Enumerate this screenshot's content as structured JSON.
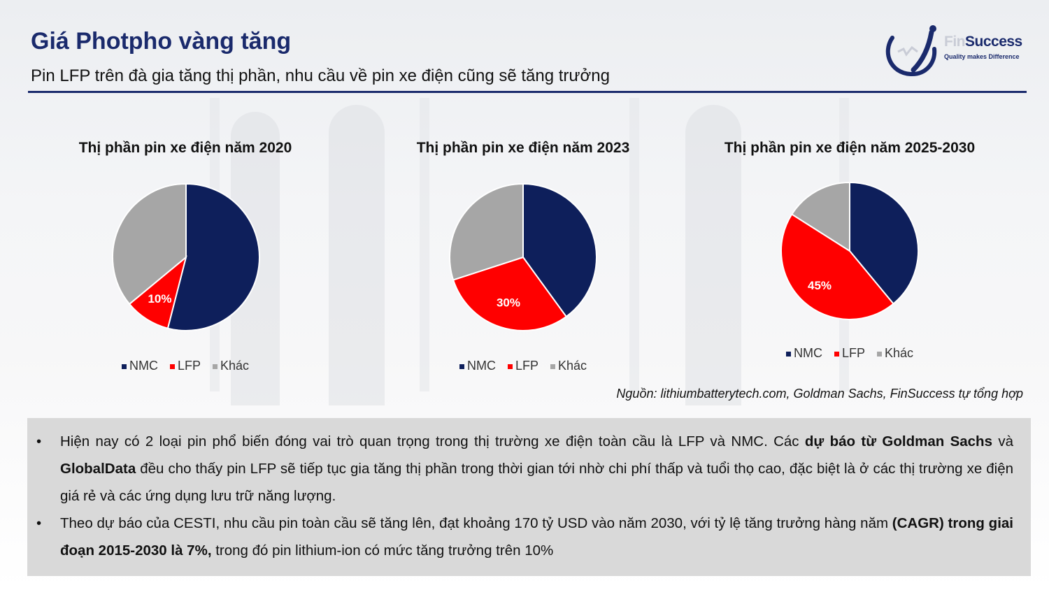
{
  "header": {
    "title": "Giá Photpho vàng tăng",
    "subtitle": "Pin LFP trên đà gia tăng thị phần, nhu cầu về pin xe điện cũng sẽ tăng trưởng"
  },
  "logo": {
    "name_prefix": "Fin",
    "name_suffix": "Success",
    "tagline": "Quality makes Difference"
  },
  "colors": {
    "NMC": "#0e1f5b",
    "LFP": "#ff0000",
    "Khác": "#a6a6a6",
    "brand": "#1a2a6c"
  },
  "chart_data": [
    {
      "type": "pie",
      "title": "Thị phần pin xe điện năm 2020",
      "categories": [
        "NMC",
        "LFP",
        "Khác"
      ],
      "values": [
        54,
        10,
        36
      ],
      "data_labels": [
        "",
        "10%",
        ""
      ],
      "legend": "bottom"
    },
    {
      "type": "pie",
      "title": "Thị phần pin xe điện năm 2023",
      "categories": [
        "NMC",
        "LFP",
        "Khác"
      ],
      "values": [
        40,
        30,
        30
      ],
      "data_labels": [
        "",
        "30%",
        ""
      ],
      "legend": "bottom"
    },
    {
      "type": "pie",
      "title": "Thị phần pin xe điện năm 2025-2030",
      "categories": [
        "NMC",
        "LFP",
        "Khác"
      ],
      "values": [
        39,
        45,
        16
      ],
      "data_labels": [
        "",
        "45%",
        ""
      ],
      "legend": "bottom"
    }
  ],
  "source": "Nguồn: lithiumbatterytech.com, Goldman Sachs, FinSuccess tự tổng hợp",
  "notes": {
    "bullet": "•",
    "item1": {
      "t1": "Hiện nay có 2 loại pin phổ biến đóng vai trò quan trọng trong thị trường xe điện toàn cầu là LFP và NMC. Các ",
      "b1": "dự báo từ Goldman Sachs",
      "t2": " và ",
      "b2": "GlobalData",
      "t3": " đều cho thấy pin LFP sẽ tiếp tục gia tăng thị phần trong thời gian tới nhờ chi phí thấp và tuổi thọ cao, đặc biệt là ở các thị trường xe điện giá rẻ và các ứng dụng lưu trữ năng lượng."
    },
    "item2": {
      "t1": "Theo dự báo của CESTI, nhu cầu pin toàn cầu sẽ tăng lên, đạt khoảng 170 tỷ USD vào năm 2030, với tỷ lệ tăng trưởng hàng năm ",
      "b1": "(CAGR) trong giai đoạn 2015-2030 là 7%,",
      "t2": " trong đó pin lithium-ion có mức tăng trưởng trên 10%"
    }
  }
}
